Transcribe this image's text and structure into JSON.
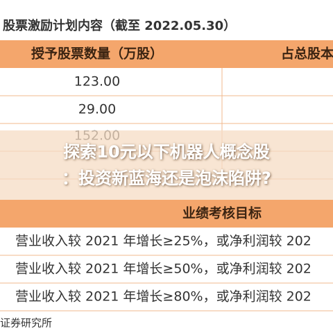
{
  "caption": "股票激励计划内容（截至 2022.05.30）",
  "table1": {
    "header": [
      "授予股票数量（万股）",
      "占总股本"
    ],
    "rows": [
      [
        "123.00"
      ],
      [
        "29.00"
      ],
      [
        "152.00"
      ]
    ]
  },
  "overlay": {
    "line1": "探索10元以下机器人概念股",
    "line2": "：投资新蓝海还是泡沫陷阱?"
  },
  "table2": {
    "header": "业绩考核目标",
    "rows": [
      "营业收入较 2021 年增长≥25%，或净利润较 202",
      "营业收入较 2021 年增长≥50%，或净利润较 202",
      "营业收入较 2021 年增长≥80%，或净利润较 202"
    ]
  },
  "footer": "证券研究所"
}
